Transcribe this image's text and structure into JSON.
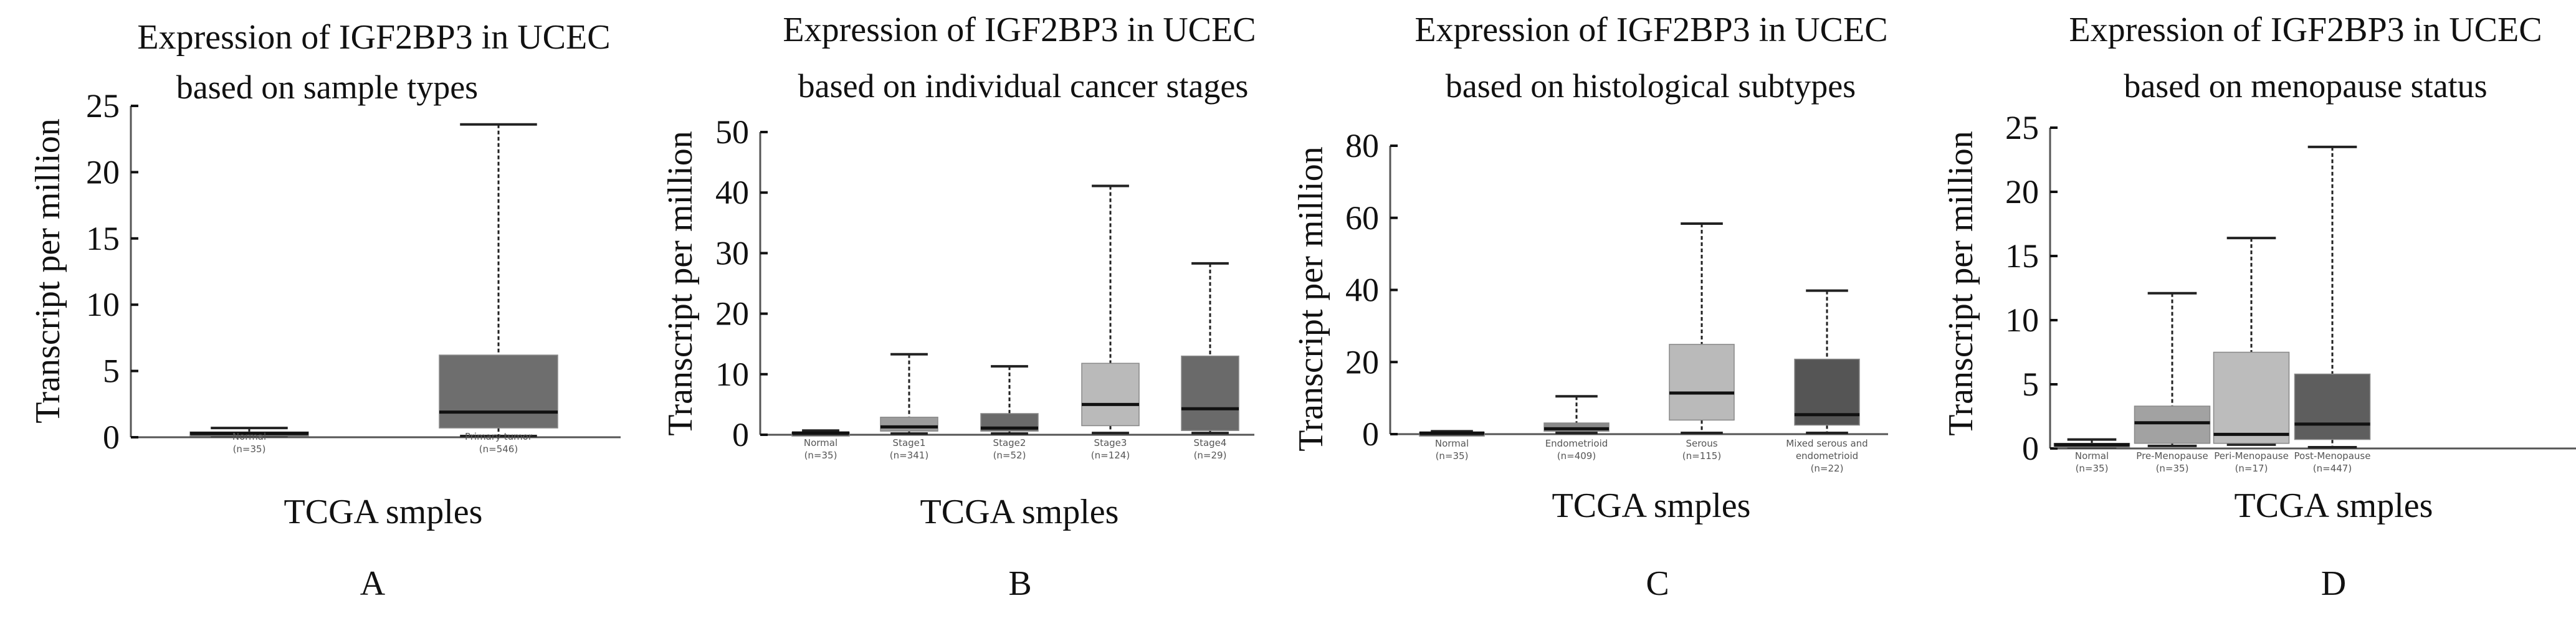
{
  "figure": {
    "panel_letters": [
      "A",
      "B",
      "C",
      "D"
    ]
  },
  "chart_data": [
    {
      "type": "box",
      "panel": "A",
      "title_line1": "Expression of IGF2BP3 in UCEC",
      "title_line2": "based on sample types",
      "xlabel": "TCGA smples",
      "ylabel": "Transcript per million",
      "ylim": [
        0,
        25
      ],
      "yticks": [
        0,
        5,
        10,
        15,
        20,
        25
      ],
      "grid": false,
      "categories": [
        {
          "name": "Normal",
          "n": "(n=35)",
          "min": 0.0,
          "q1": 0.1,
          "median": 0.3,
          "q3": 0.4,
          "max": 0.7,
          "color": "#3a3a3a"
        },
        {
          "name": "Primary tumor",
          "n": "(n=546)",
          "min": 0.0,
          "q1": 0.7,
          "median": 1.9,
          "q3": 6.2,
          "max": 23.6,
          "color": "#6e6e6e"
        }
      ]
    },
    {
      "type": "box",
      "panel": "B",
      "title_line1": "Expression of IGF2BP3 in UCEC",
      "title_line2": "based on individual cancer stages",
      "xlabel": "TCGA smples",
      "ylabel": "Transcript per million",
      "ylim": [
        0,
        50
      ],
      "yticks": [
        0,
        10,
        20,
        30,
        40,
        50
      ],
      "grid": false,
      "categories": [
        {
          "name": "Normal",
          "n": "(n=35)",
          "min": 0.0,
          "q1": 0.1,
          "median": 0.3,
          "q3": 0.4,
          "max": 0.7,
          "color": "#3a3a3a"
        },
        {
          "name": "Stage1",
          "n": "(n=341)",
          "min": 0.2,
          "q1": 0.6,
          "median": 1.3,
          "q3": 2.9,
          "max": 13.3,
          "color": "#9c9c9c"
        },
        {
          "name": "Stage2",
          "n": "(n=52)",
          "min": 0.1,
          "q1": 0.6,
          "median": 1.1,
          "q3": 3.5,
          "max": 11.3,
          "color": "#6a6a6a"
        },
        {
          "name": "Stage3",
          "n": "(n=124)",
          "min": 0.3,
          "q1": 1.5,
          "median": 5.0,
          "q3": 11.8,
          "max": 41.1,
          "color": "#bababa"
        },
        {
          "name": "Stage4",
          "n": "(n=29)",
          "min": 0.3,
          "q1": 0.7,
          "median": 4.3,
          "q3": 13.0,
          "max": 28.3,
          "color": "#6a6a6a"
        }
      ]
    },
    {
      "type": "box",
      "panel": "C",
      "title_line1": "Expression of IGF2BP3 in UCEC",
      "title_line2": "based on histological subtypes",
      "xlabel": "TCGA smples",
      "ylabel": "Transcript per million",
      "ylim": [
        0,
        80
      ],
      "yticks": [
        0,
        20,
        40,
        60,
        80
      ],
      "grid": false,
      "categories": [
        {
          "name": "Normal",
          "n": "(n=35)",
          "min": 0.0,
          "q1": 0.1,
          "median": 0.3,
          "q3": 0.5,
          "max": 0.8,
          "color": "#3a3a3a"
        },
        {
          "name": "Endometrioid",
          "n": "(n=409)",
          "min": 0.2,
          "q1": 0.8,
          "median": 1.5,
          "q3": 3.1,
          "max": 10.5,
          "color": "#8a8a8a"
        },
        {
          "name": "Serous",
          "n": "(n=115)",
          "min": 0.2,
          "q1": 3.9,
          "median": 11.4,
          "q3": 24.9,
          "max": 58.4,
          "color": "#bababa"
        },
        {
          "name": "Mixed serous and endometrioid",
          "n": "(n=22)",
          "min": 0.2,
          "q1": 2.5,
          "median": 5.4,
          "q3": 20.8,
          "max": 39.8,
          "color": "#555555"
        }
      ]
    },
    {
      "type": "box",
      "panel": "D",
      "title_line1": "Expression of IGF2BP3 in UCEC",
      "title_line2": "based on menopause status",
      "xlabel": "TCGA smples",
      "ylabel": "Transcript per million",
      "ylim": [
        0,
        25
      ],
      "yticks": [
        0,
        5,
        10,
        15,
        20,
        25
      ],
      "grid": false,
      "categories": [
        {
          "name": "Normal",
          "n": "(n=35)",
          "min": 0.0,
          "q1": 0.1,
          "median": 0.3,
          "q3": 0.4,
          "max": 0.7,
          "color": "#3a3a3a"
        },
        {
          "name": "Pre-Menopause",
          "n": "(n=35)",
          "min": 0.2,
          "q1": 0.4,
          "median": 2.0,
          "q3": 3.3,
          "max": 12.1,
          "color": "#a2a2a2"
        },
        {
          "name": "Peri-Menopause",
          "n": "(n=17)",
          "min": 0.3,
          "q1": 0.4,
          "median": 1.1,
          "q3": 7.5,
          "max": 16.4,
          "color": "#bcbcbc"
        },
        {
          "name": "Post-Menopause",
          "n": "(n=447)",
          "min": 0.0,
          "q1": 0.7,
          "median": 1.9,
          "q3": 5.8,
          "max": 23.5,
          "color": "#5e5e5e"
        }
      ]
    }
  ]
}
